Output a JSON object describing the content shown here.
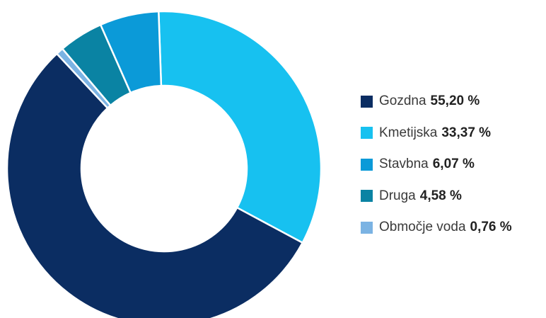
{
  "chart_data": {
    "type": "pie",
    "donut": true,
    "start_angle_deg": -2,
    "categories": [
      "Gozdna",
      "Kmetijska",
      "Stavbna",
      "Druga",
      "Območje voda"
    ],
    "values": [
      55.2,
      33.37,
      6.07,
      4.58,
      0.76
    ],
    "value_labels": [
      "55,20 %",
      "33,37 %",
      "6,07 %",
      "4,58 %",
      "0,76 %"
    ],
    "colors": [
      "#0b2d62",
      "#17c1f0",
      "#0b9ad8",
      "#0a83a3",
      "#7bb3e3"
    ],
    "slice_order": [
      "Kmetijska",
      "Gozdna",
      "Območje voda",
      "Druga",
      "Stavbna"
    ],
    "title": "",
    "legend_position": "right"
  }
}
